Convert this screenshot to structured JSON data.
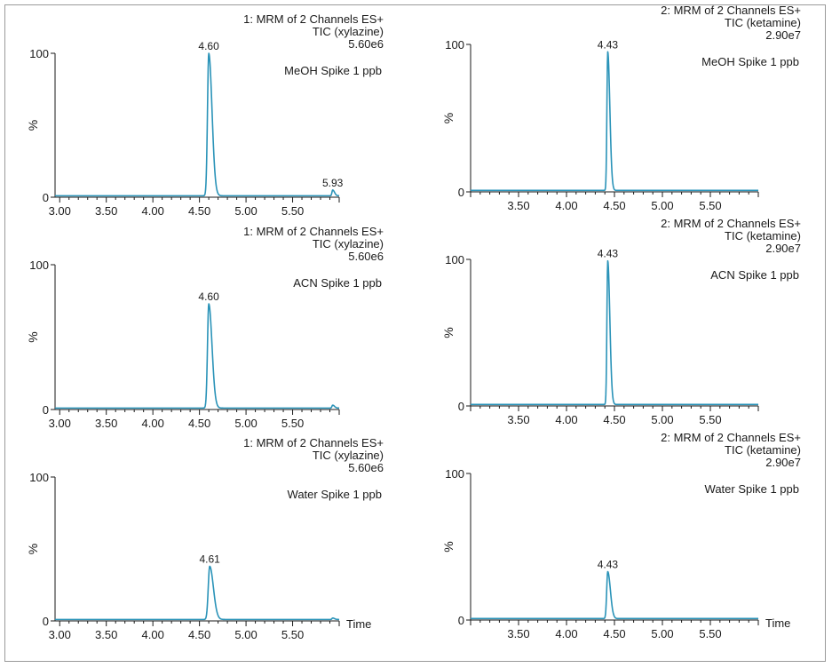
{
  "colors": {
    "trace": "#2a93b8",
    "axis": "#1a1a1a",
    "frame": "#9a9a9a"
  },
  "chart_data": [
    {
      "type": "line",
      "header": [
        "1: MRM of 2 Channels ES+",
        "TIC (xylazine)",
        "5.60e6"
      ],
      "sample": "MeOH Spike 1 ppb",
      "ylabel": "%",
      "xlabel": "",
      "x_ticks": [
        "3.00",
        "3.50",
        "4.00",
        "4.50",
        "5.00",
        "5.50"
      ],
      "y_ticks": [
        "0",
        "100"
      ],
      "xlim": [
        2.95,
        6.0
      ],
      "ylim": [
        0,
        100
      ],
      "peaks": [
        {
          "label": "4.60",
          "rt": 4.6,
          "height": 100,
          "width": 0.035
        },
        {
          "label": "5.93",
          "rt": 5.93,
          "height": 5,
          "width": 0.02
        }
      ]
    },
    {
      "type": "line",
      "header": [
        "2: MRM of 2 Channels ES+",
        "TIC (ketamine)",
        "2.90e7"
      ],
      "sample": "MeOH Spike 1 ppb",
      "ylabel": "%",
      "xlabel": "",
      "x_ticks": [
        "3.50",
        "4.00",
        "4.50",
        "5.00",
        "5.50"
      ],
      "y_ticks": [
        "0",
        "100"
      ],
      "xlim": [
        3.0,
        6.0
      ],
      "ylim": [
        0,
        100
      ],
      "peaks": [
        {
          "label": "4.43",
          "rt": 4.43,
          "height": 95,
          "width": 0.022
        }
      ]
    },
    {
      "type": "line",
      "header": [
        "1: MRM of 2 Channels ES+",
        "TIC (xylazine)",
        "5.60e6"
      ],
      "sample": "ACN Spike 1 ppb",
      "ylabel": "%",
      "xlabel": "",
      "x_ticks": [
        "3.00",
        "3.50",
        "4.00",
        "4.50",
        "5.00",
        "5.50"
      ],
      "y_ticks": [
        "0",
        "100"
      ],
      "xlim": [
        2.95,
        6.0
      ],
      "ylim": [
        0,
        100
      ],
      "peaks": [
        {
          "label": "4.60",
          "rt": 4.6,
          "height": 73,
          "width": 0.035
        },
        {
          "rt": 5.93,
          "height": 3,
          "width": 0.02
        }
      ]
    },
    {
      "type": "line",
      "header": [
        "2: MRM of 2 Channels ES+",
        "TIC (ketamine)",
        "2.90e7"
      ],
      "sample": "ACN Spike 1 ppb",
      "ylabel": "%",
      "xlabel": "",
      "x_ticks": [
        "3.50",
        "4.00",
        "4.50",
        "5.00",
        "5.50"
      ],
      "y_ticks": [
        "0",
        "100"
      ],
      "xlim": [
        3.0,
        6.0
      ],
      "ylim": [
        0,
        100
      ],
      "peaks": [
        {
          "label": "4.43",
          "rt": 4.43,
          "height": 99,
          "width": 0.022
        }
      ]
    },
    {
      "type": "line",
      "header": [
        "1: MRM of 2 Channels ES+",
        "TIC (xylazine)",
        "5.60e6"
      ],
      "sample": "Water Spike 1 ppb",
      "ylabel": "%",
      "xlabel": "Time",
      "x_ticks": [
        "3.00",
        "3.50",
        "4.00",
        "4.50",
        "5.00",
        "5.50"
      ],
      "y_ticks": [
        "0",
        "100"
      ],
      "xlim": [
        2.95,
        6.0
      ],
      "ylim": [
        0,
        100
      ],
      "peaks": [
        {
          "label": "4.61",
          "rt": 4.61,
          "height": 38,
          "width": 0.04
        },
        {
          "rt": 5.93,
          "height": 2,
          "width": 0.02
        }
      ]
    },
    {
      "type": "line",
      "header": [
        "2: MRM of 2 Channels ES+",
        "TIC (ketamine)",
        "2.90e7"
      ],
      "sample": "Water Spike 1 ppb",
      "ylabel": "%",
      "xlabel": "Time",
      "x_ticks": [
        "3.50",
        "4.00",
        "4.50",
        "5.00",
        "5.50"
      ],
      "y_ticks": [
        "0",
        "100"
      ],
      "xlim": [
        3.0,
        6.0
      ],
      "ylim": [
        0,
        100
      ],
      "peaks": [
        {
          "label": "4.43",
          "rt": 4.43,
          "height": 33,
          "width": 0.028
        }
      ]
    }
  ]
}
